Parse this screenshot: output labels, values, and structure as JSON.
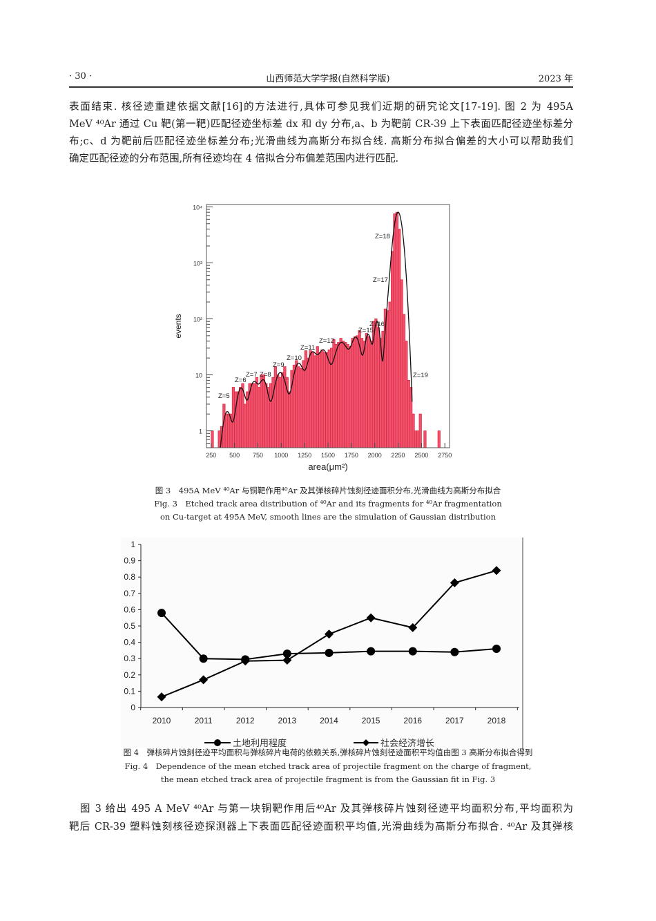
{
  "header": {
    "page_number": "· 30 ·",
    "journal": "山西师范大学学报(自然科学版)",
    "year": "2023 年"
  },
  "paragraph1": [
    "表面结束. 核径迹重建依据文献[16]的方法进行,具体可参见我们近期的研究论文[17-19]. 图 2 为 495A",
    "MeV ⁴⁰Ar 通过 Cu 靶(第一靶)匹配径迹坐标差 dx 和 dy 分布,a、b 为靶前 CR-39 上下表面匹配径迹坐标差分",
    "布;c、d 为靶前后匹配径迹坐标差分布;光滑曲线为高斯分布拟合线. 高斯分布拟合偏差的大小可以帮助我们",
    "确定匹配径迹的分布范围,所有径迹均在 4 倍拟合分布偏差范围内进行匹配."
  ],
  "figure3": {
    "caption_cn": "图 3　495A MeV ⁴⁰Ar 与铜靶作用⁴⁰Ar 及其弹核碎片蚀刻径迹面积分布,光滑曲线为高斯分布拟合",
    "caption_en_1": "Fig. 3　Etched track area distribution of ⁴⁰Ar and its fragments for ⁴⁰Ar fragmentation",
    "caption_en_2": "on Cu-target at 495A MeV, smooth lines are the simulation of Gaussian distribution"
  },
  "figure4": {
    "caption_cn": "图 4　弹核碎片蚀刻径迹平均面积与弹核碎片电荷的依赖关系,弹核碎片蚀刻径迹面积平均值由图 3 高斯分布拟合得到",
    "caption_en_1": "Fig. 4　Dependence of the mean etched track area of projectile fragment on the charge of fragment,",
    "caption_en_2": "the mean etched track area of projectile fragment is from the Gaussian fit in Fig. 3"
  },
  "paragraph2": [
    "　图 3 给出 495 A MeV ⁴⁰Ar 与第一块铜靶作用后⁴⁰Ar 及其弹核碎片蚀刻径迹平均面积分布,平均面积为",
    "靶后 CR-39 塑料蚀刻核径迹探测器上下表面匹配径迹面积平均值,光滑曲线为高斯分布拟合. ⁴⁰Ar 及其弹核"
  ],
  "chart_data": [
    {
      "type": "bar",
      "subtype": "histogram",
      "xlabel": "area(μm²)",
      "ylabel": "events",
      "xlim": [
        200,
        2800
      ],
      "ylim": [
        0.5,
        11000
      ],
      "yscale": "log",
      "x_ticks": [
        "250",
        "500",
        "750",
        "1000",
        "1250",
        "1500",
        "1750",
        "2000",
        "2250",
        "2500",
        "2750"
      ],
      "y_ticks": [
        "1",
        "10",
        "10²",
        "10³",
        "10⁴"
      ],
      "bin_width": 25,
      "bin_starts": [
        250,
        275,
        300,
        325,
        350,
        375,
        400,
        425,
        450,
        475,
        500,
        525,
        550,
        575,
        600,
        625,
        650,
        675,
        700,
        725,
        750,
        775,
        800,
        825,
        850,
        875,
        900,
        925,
        950,
        975,
        1000,
        1025,
        1050,
        1075,
        1100,
        1125,
        1150,
        1175,
        1200,
        1225,
        1250,
        1275,
        1300,
        1325,
        1350,
        1375,
        1400,
        1425,
        1450,
        1475,
        1500,
        1525,
        1550,
        1575,
        1600,
        1625,
        1650,
        1675,
        1700,
        1725,
        1750,
        1775,
        1800,
        1825,
        1850,
        1875,
        1900,
        1925,
        1950,
        1975,
        2000,
        2025,
        2050,
        2075,
        2100,
        2125,
        2150,
        2175,
        2200,
        2225,
        2250,
        2275,
        2300,
        2325,
        2350,
        2375,
        2400,
        2425,
        2450,
        2475,
        2500,
        2525,
        2550,
        2575,
        2600,
        2625,
        2650,
        2675,
        2700,
        2725
      ],
      "counts": [
        1,
        0,
        0,
        1,
        1.2,
        3,
        2,
        2,
        2,
        6,
        5,
        5,
        6,
        7,
        3,
        5,
        7,
        7,
        7,
        9,
        6,
        10,
        10,
        7,
        6,
        7,
        9,
        14,
        10,
        9,
        11,
        14,
        9,
        5,
        12,
        15,
        18,
        14,
        13,
        18,
        27,
        20,
        27,
        25,
        22,
        32,
        25,
        28,
        25,
        25,
        28,
        30,
        43,
        35,
        38,
        45,
        40,
        38,
        35,
        32,
        45,
        48,
        50,
        62,
        45,
        40,
        55,
        48,
        40,
        90,
        100,
        70,
        45,
        60,
        150,
        140,
        200,
        1600,
        7500,
        8000,
        4000,
        500,
        120,
        40,
        8,
        6,
        2,
        1,
        1,
        2,
        0,
        1,
        0,
        0,
        0,
        0,
        0,
        1,
        0,
        0
      ],
      "gaussian_fit": [
        {
          "label": "Z=5",
          "mean": 422,
          "amplitude": 2.2,
          "sigma": 42
        },
        {
          "label": "Z=6",
          "mean": 570,
          "amplitude": 5.8,
          "sigma": 42
        },
        {
          "label": "Z=7",
          "mean": 705,
          "amplitude": 7.2,
          "sigma": 42
        },
        {
          "label": "Z=8",
          "mean": 810,
          "amplitude": 7.8,
          "sigma": 42
        },
        {
          "label": "Z=9",
          "mean": 990,
          "amplitude": 11,
          "sigma": 55
        },
        {
          "label": "Z=10",
          "mean": 1186,
          "amplitude": 16,
          "sigma": 50
        },
        {
          "label": "Z=11",
          "mean": 1330,
          "amplitude": 24,
          "sigma": 45
        },
        {
          "label": "Z=12",
          "mean": 1450,
          "amplitude": 27,
          "sigma": 50
        },
        {
          "label": "",
          "mean": 1645,
          "amplitude": 38,
          "sigma": 65
        },
        {
          "label": "",
          "mean": 1800,
          "amplitude": 45,
          "sigma": 45
        },
        {
          "label": "Z=15",
          "mean": 1930,
          "amplitude": 52,
          "sigma": 32
        },
        {
          "label": "Z=16",
          "mean": 2025,
          "amplitude": 90,
          "sigma": 27
        },
        {
          "label": "Z=17",
          "mean": 2160,
          "amplitude": 150,
          "sigma": 32
        },
        {
          "label": "Z=18",
          "mean": 2250,
          "amplitude": 8000,
          "sigma": 38
        }
      ],
      "annotations": [
        "Z=5",
        "Z=6",
        "Z=7",
        "Z=8",
        "Z=9",
        "Z=10",
        "Z=11",
        "Z=12",
        "Z=15",
        "Z=16",
        "Z=17",
        "Z=18",
        "Z=19"
      ],
      "series_color": "#ee5470",
      "fit_color": "#111111"
    },
    {
      "type": "line",
      "categories": [
        "2010",
        "2011",
        "2012",
        "2013",
        "2014",
        "2015",
        "2016",
        "2017",
        "2018"
      ],
      "ylim": [
        0,
        1
      ],
      "y_ticks": [
        "0",
        "0.1",
        "0.2",
        "0.3",
        "0.4",
        "0.5",
        "0.6",
        "0.7",
        "0.8",
        "0.9",
        "1"
      ],
      "series": [
        {
          "name": "土地利用程度",
          "marker": "circle",
          "values": [
            0.58,
            0.3,
            0.295,
            0.33,
            0.335,
            0.345,
            0.345,
            0.34,
            0.36
          ]
        },
        {
          "name": "社会经济增长",
          "marker": "diamond",
          "values": [
            0.065,
            0.17,
            0.285,
            0.29,
            0.45,
            0.55,
            0.49,
            0.765,
            0.84
          ]
        }
      ],
      "legend": "bottom",
      "grid": false
    }
  ]
}
